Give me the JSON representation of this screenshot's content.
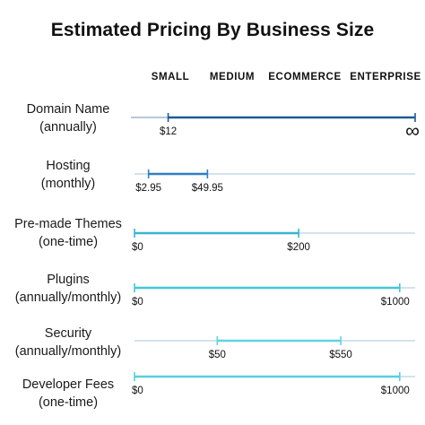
{
  "chart_data": {
    "type": "range",
    "title": "Estimated Pricing By Business Size",
    "categories": [
      "SMALL",
      "MEDIUM",
      "ECOMMERCE",
      "ENTERPRISE"
    ],
    "rows": [
      {
        "label_line1": "Domain Name",
        "label_line2": "(annually)",
        "start_label": "$12",
        "end_label": "∞",
        "start_pos": 0.12,
        "end_pos": 1.0,
        "color": "#1f5a96"
      },
      {
        "label_line1": "Hosting",
        "label_line2": "(monthly)",
        "start_label": "$2.95",
        "end_label": "$49.95",
        "start_pos": 0.05,
        "end_pos": 0.26,
        "color": "#2f7fc4"
      },
      {
        "label_line1": "Pre-made Themes",
        "label_line2": "(one-time)",
        "start_label": "$0",
        "end_label": "$200",
        "start_pos": 0.0,
        "end_pos": 0.585,
        "color": "#38b4cf"
      },
      {
        "label_line1": "Plugins",
        "label_line2": "(annually/monthly)",
        "start_label": "$0",
        "end_label": "$1000",
        "start_pos": 0.0,
        "end_pos": 0.945,
        "color": "#44c6da"
      },
      {
        "label_line1": "Security",
        "label_line2": "(annually/monthly)",
        "start_label": "$50",
        "end_label": "$550",
        "start_pos": 0.295,
        "end_pos": 0.735,
        "color": "#5fd3e3"
      },
      {
        "label_line1": "Developer Fees",
        "label_line2": "(one-time)",
        "start_label": "$0",
        "end_label": "$1000",
        "start_pos": 0.0,
        "end_pos": 0.945,
        "color": "#55cfe0"
      }
    ]
  }
}
